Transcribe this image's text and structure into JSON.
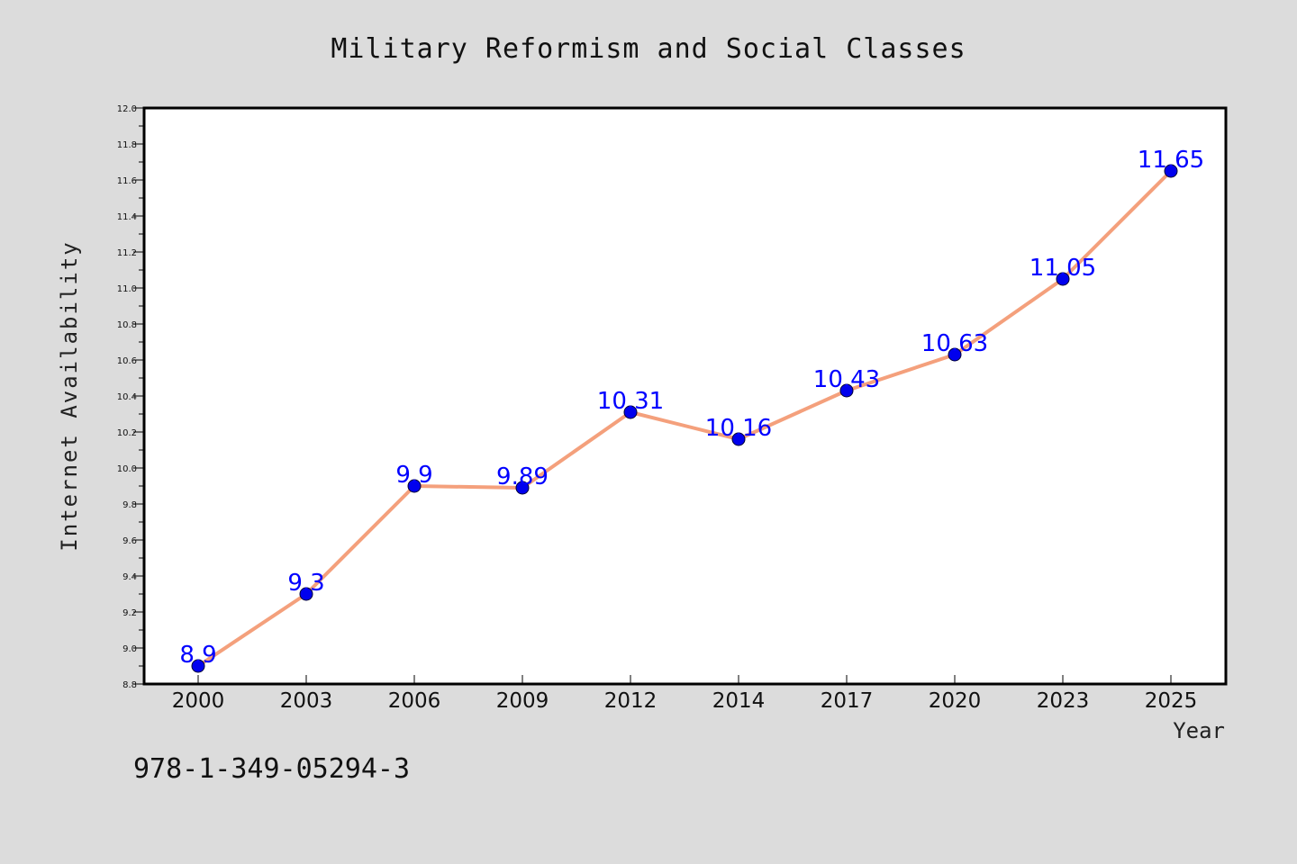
{
  "chart_data": {
    "type": "line",
    "title": "Military Reformism and Social Classes",
    "xlabel": "Year",
    "ylabel": "Internet Availability",
    "categories": [
      "2000",
      "2003",
      "2006",
      "2009",
      "2012",
      "2014",
      "2017",
      "2020",
      "2023",
      "2025"
    ],
    "series": [
      {
        "values": [
          8.9,
          9.3,
          9.9,
          9.89,
          10.31,
          10.16,
          10.43,
          10.63,
          11.05,
          11.65
        ],
        "labels": [
          "8.9",
          "9.3",
          "9.9",
          "9.89",
          "10.31",
          "10.16",
          "10.43",
          "10.63",
          "11.05",
          "11.65"
        ],
        "line_color": "#f4a07c",
        "marker_color": "#0000ee",
        "label_color": "#0000ff"
      }
    ],
    "ylim": [
      8.8,
      12.0
    ],
    "yticks": [
      "8.8",
      "9.0",
      "9.2",
      "9.4",
      "9.6",
      "9.8",
      "10.0",
      "10.2",
      "10.4",
      "10.6",
      "10.8",
      "11.0",
      "11.2",
      "11.4",
      "11.6",
      "11.8",
      "12.0"
    ],
    "grid": false,
    "legend": "none"
  },
  "footer": {
    "isbn": "978-1-349-05294-3"
  },
  "colors": {
    "background": "#dcdcdc",
    "plot_background": "#ffffff",
    "axis": "#000000"
  }
}
